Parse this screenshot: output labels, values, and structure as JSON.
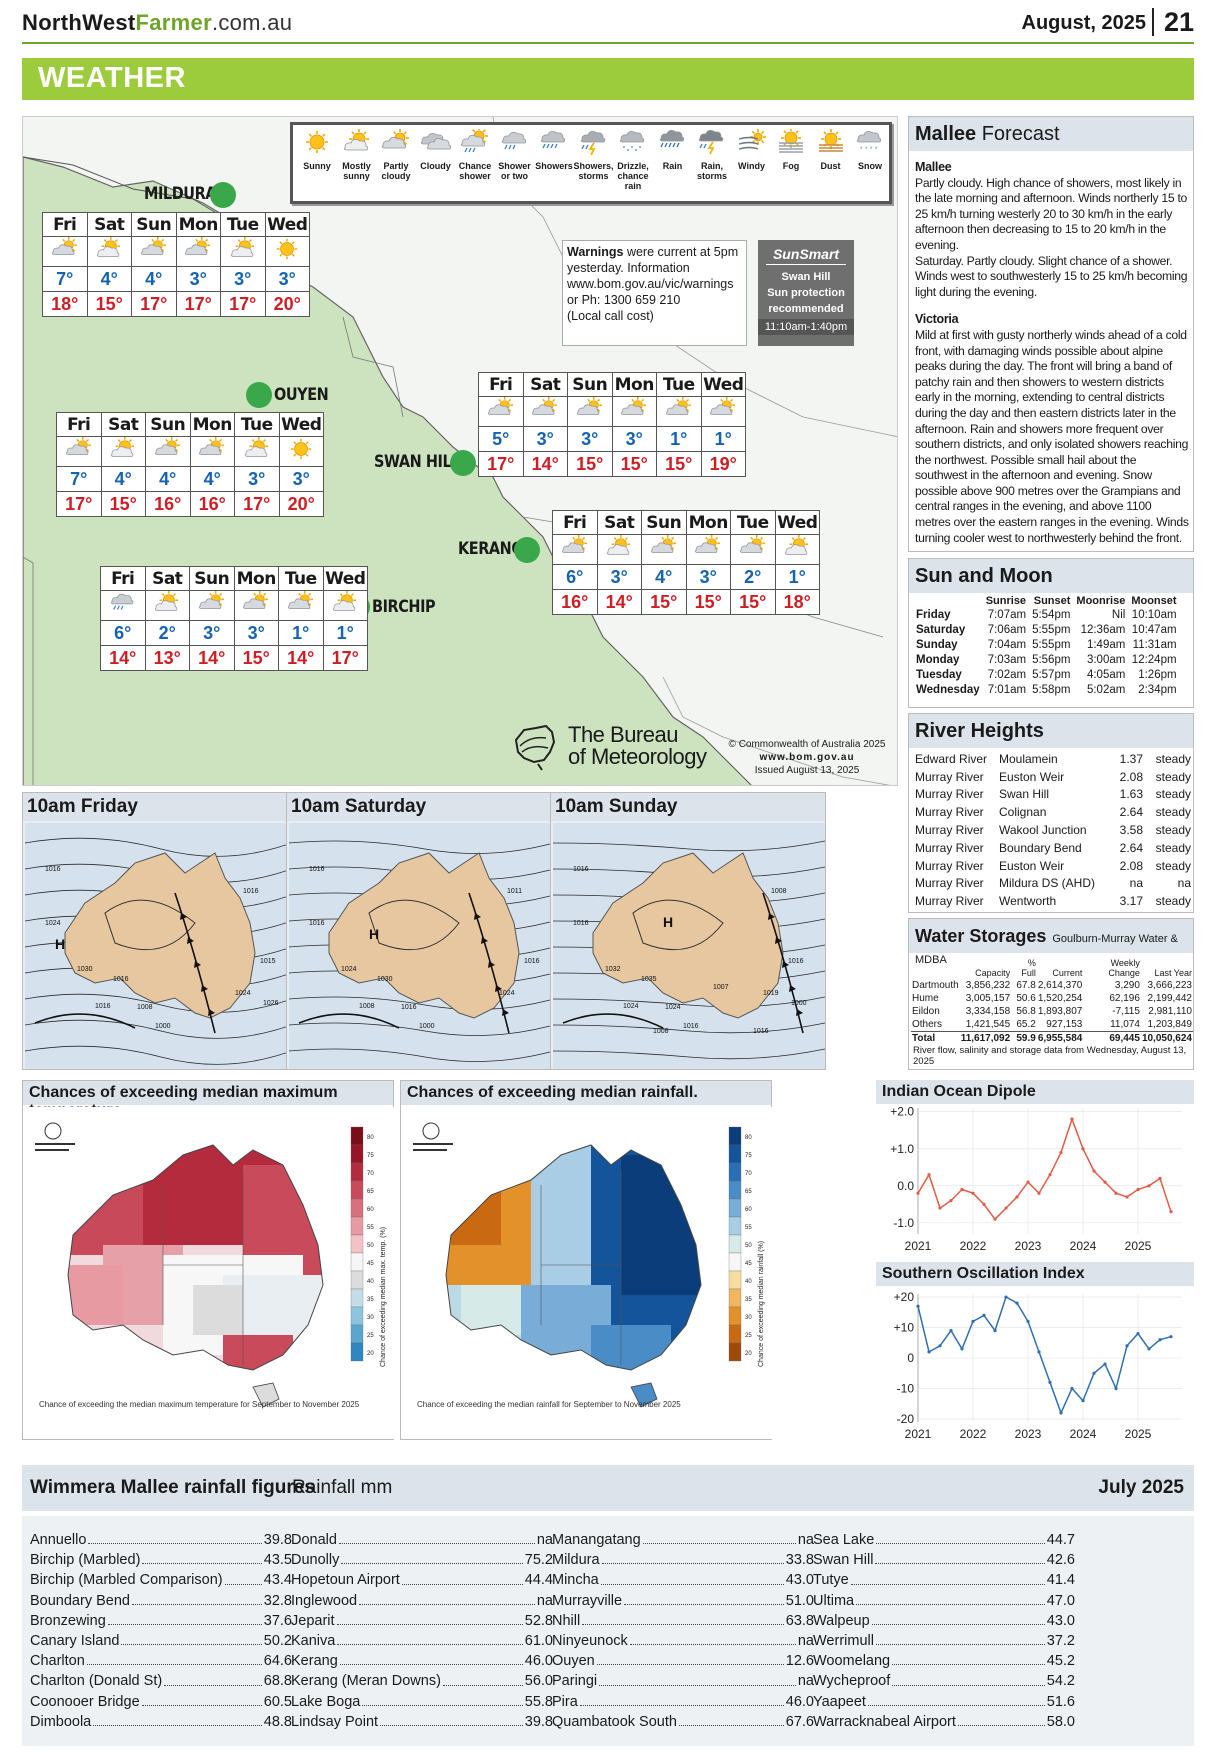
{
  "header": {
    "site_north_west": "NorthWest",
    "site_farmer": "Farmer",
    "site_domain": ".com.au",
    "issue": "August, 2025",
    "page": "21"
  },
  "section_title": "WEATHER",
  "legend": [
    {
      "label": "Sunny",
      "icon": "sunny-icon"
    },
    {
      "label": "Mostly sunny",
      "icon": "mostly-sunny-icon"
    },
    {
      "label": "Partly cloudy",
      "icon": "partly-cloudy-icon"
    },
    {
      "label": "Cloudy",
      "icon": "cloudy-icon"
    },
    {
      "label": "Chance shower",
      "icon": "chance-shower-icon"
    },
    {
      "label": "Shower or two",
      "icon": "shower-or-two-icon"
    },
    {
      "label": "Showers",
      "icon": "showers-icon"
    },
    {
      "label": "Showers, storms",
      "icon": "showers-storms-icon"
    },
    {
      "label": "Drizzle, chance rain",
      "icon": "drizzle-icon"
    },
    {
      "label": "Rain",
      "icon": "rain-icon"
    },
    {
      "label": "Rain, storms",
      "icon": "rain-storms-icon"
    },
    {
      "label": "Windy",
      "icon": "windy-icon"
    },
    {
      "label": "Fog",
      "icon": "fog-icon"
    },
    {
      "label": "Dust",
      "icon": "dust-icon"
    },
    {
      "label": "Snow",
      "icon": "snow-icon"
    }
  ],
  "days": [
    "Fri",
    "Sat",
    "Sun",
    "Mon",
    "Tue",
    "Wed"
  ],
  "towns": {
    "mildura": {
      "name": "MILDURA",
      "min": [
        "7°",
        "4°",
        "4°",
        "3°",
        "3°",
        "3°"
      ],
      "max": [
        "18°",
        "15°",
        "17°",
        "17°",
        "17°",
        "20°"
      ],
      "icons": [
        "partly-cloudy-icon",
        "mostly-sunny-icon",
        "partly-cloudy-icon",
        "partly-cloudy-icon",
        "mostly-sunny-icon",
        "sunny-icon"
      ]
    },
    "ouyen": {
      "name": "OUYEN",
      "min": [
        "7°",
        "4°",
        "4°",
        "4°",
        "3°",
        "3°"
      ],
      "max": [
        "17°",
        "15°",
        "16°",
        "16°",
        "17°",
        "20°"
      ],
      "icons": [
        "partly-cloudy-icon",
        "mostly-sunny-icon",
        "partly-cloudy-icon",
        "partly-cloudy-icon",
        "mostly-sunny-icon",
        "sunny-icon"
      ]
    },
    "swanhill": {
      "name": "SWAN HILL",
      "min": [
        "5°",
        "3°",
        "3°",
        "3°",
        "1°",
        "1°"
      ],
      "max": [
        "17°",
        "14°",
        "15°",
        "15°",
        "15°",
        "19°"
      ],
      "icons": [
        "partly-cloudy-icon",
        "partly-cloudy-icon",
        "partly-cloudy-icon",
        "partly-cloudy-icon",
        "partly-cloudy-icon",
        "partly-cloudy-icon"
      ]
    },
    "kerang": {
      "name": "KERANG",
      "min": [
        "6°",
        "3°",
        "4°",
        "3°",
        "2°",
        "1°"
      ],
      "max": [
        "16°",
        "14°",
        "15°",
        "15°",
        "15°",
        "18°"
      ],
      "icons": [
        "partly-cloudy-icon",
        "mostly-sunny-icon",
        "partly-cloudy-icon",
        "partly-cloudy-icon",
        "partly-cloudy-icon",
        "mostly-sunny-icon"
      ]
    },
    "birchip": {
      "name": "BIRCHIP",
      "min": [
        "6°",
        "2°",
        "3°",
        "3°",
        "1°",
        "1°"
      ],
      "max": [
        "14°",
        "13°",
        "14°",
        "15°",
        "14°",
        "17°"
      ],
      "icons": [
        "shower-or-two-icon",
        "mostly-sunny-icon",
        "partly-cloudy-icon",
        "partly-cloudy-icon",
        "partly-cloudy-icon",
        "mostly-sunny-icon"
      ]
    }
  },
  "warnings": {
    "bold": "Warnings",
    "text": " were current at 5pm yesterday. Information www.bom.gov.au/vic/warnings or Ph: 1300 659 210",
    "note": "(Local call cost)"
  },
  "sunsmart": {
    "logo": "SunSmart",
    "place": "Swan Hill",
    "line1": "Sun protection",
    "line2": "recommended",
    "time": "11:10am-1:40pm"
  },
  "bom": {
    "line1": "The Bureau",
    "line2": "of Meteorology",
    "copyright": "© Commonwealth of Australia 2025",
    "url": "www.bom.gov.au",
    "issued": "Issued August 13, 2025"
  },
  "mallee_forecast": {
    "title_bold": "Mallee",
    "title_rest": " Forecast",
    "sections": [
      {
        "heading": "Mallee",
        "text": "Partly cloudy. High chance of showers, most likely in the late morning and afternoon. Winds northerly 15 to 25 km/h turning westerly 20 to 30 km/h in the early afternoon then decreasing to 15 to 20 km/h in the evening.",
        "text2": "Saturday. Partly cloudy. Slight chance of a shower. Winds west to southwesterly 15 to 25 km/h becoming light during the evening."
      },
      {
        "heading": "Victoria",
        "text": "Mild at first with gusty northerly winds ahead of a cold front, with damaging winds possible about alpine peaks during the day. The front will bring a band of patchy rain and then showers to western districts early in the morning, extending to central districts during the day and then eastern districts later in the afternoon. Rain and showers more frequent over southern districts, and only isolated showers reaching the northwest. Possible small hail about the southwest in the afternoon and evening. Snow possible above 900 metres over the Grampians and central ranges in the evening, and above 1100 metres over the eastern ranges in the evening. Winds turning cooler west to northwesterly behind the front.",
        "text2": ""
      }
    ]
  },
  "sun_moon": {
    "title": "Sun and Moon",
    "headers": [
      "Sunrise",
      "Sunset",
      "Moonrise",
      "Moonset"
    ],
    "rows": [
      {
        "day": "Friday",
        "vals": [
          "7:07am",
          "5:54pm",
          "Nil",
          "10:10am"
        ]
      },
      {
        "day": "Saturday",
        "vals": [
          "7:06am",
          "5:55pm",
          "12:36am",
          "10:47am"
        ]
      },
      {
        "day": "Sunday",
        "vals": [
          "7:04am",
          "5:55pm",
          "1:49am",
          "11:31am"
        ]
      },
      {
        "day": "Monday",
        "vals": [
          "7:03am",
          "5:56pm",
          "3:00am",
          "12:24pm"
        ]
      },
      {
        "day": "Tuesday",
        "vals": [
          "7:02am",
          "5:57pm",
          "4:05am",
          "1:26pm"
        ]
      },
      {
        "day": "Wednesday",
        "vals": [
          "7:01am",
          "5:58pm",
          "5:02am",
          "2:34pm"
        ]
      }
    ]
  },
  "river_heights": {
    "title": "River Heights",
    "rows": [
      [
        "Edward River",
        "Moulamein",
        "1.37",
        "steady"
      ],
      [
        "Murray River",
        "Euston Weir",
        "2.08",
        "steady"
      ],
      [
        "Murray River",
        "Swan Hill",
        "1.63",
        "steady"
      ],
      [
        "Murray River",
        "Colignan",
        "2.64",
        "steady"
      ],
      [
        "Murray River",
        "Wakool Junction",
        "3.58",
        "steady"
      ],
      [
        "Murray River",
        "Boundary Bend",
        "2.64",
        "steady"
      ],
      [
        "Murray River",
        "Euston Weir",
        "2.08",
        "steady"
      ],
      [
        "Murray River",
        "Mildura DS (AHD)",
        "na",
        "na"
      ],
      [
        "Murray River",
        "Wentworth",
        "3.17",
        "steady"
      ]
    ]
  },
  "water_storages": {
    "title": "Water Storages",
    "source": "Goulburn-Murray Water & MDBA",
    "headers": [
      "",
      "Capacity",
      "% Full",
      "Current",
      "Weekly Change",
      "Last Year"
    ],
    "rows": [
      [
        "Dartmouth",
        "3,856,232",
        "67.8",
        "2,614,370",
        "3,290",
        "3,666,223"
      ],
      [
        "Hume",
        "3,005,157",
        "50.6",
        "1,520,254",
        "62,196",
        "2,199,442"
      ],
      [
        "Eildon",
        "3,334,158",
        "56.8",
        "1,893,807",
        "-7,115",
        "2,981,110"
      ],
      [
        "Others",
        "1,421,545",
        "65.2",
        "927,153",
        "11,074",
        "1,203,849"
      ]
    ],
    "total": [
      "Total",
      "11,617,092",
      "59.9",
      "6,955,584",
      "69,445",
      "10,050,624"
    ],
    "note": "River flow, salinity and storage data from Wednesday, August 13, 2025"
  },
  "synoptic": [
    {
      "title": "10am Friday",
      "labels": [
        "1016",
        "1024",
        "1030",
        "1016",
        "1024",
        "1008",
        "1016",
        "1000",
        "1016",
        "1015",
        "1026"
      ]
    },
    {
      "title": "10am Saturday",
      "labels": [
        "1016",
        "1016",
        "1024",
        "1030",
        "1024",
        "1016",
        "1008",
        "1000",
        "1011",
        "1016"
      ]
    },
    {
      "title": "10am Sunday",
      "labels": [
        "1016",
        "1016",
        "1032",
        "1035",
        "1019",
        "1024",
        "1024",
        "1016",
        "1008",
        "1016",
        "1000",
        "1007",
        "1008",
        "1016"
      ]
    }
  ],
  "outlooks": [
    {
      "title": "Chances of exceeding median maximum temperature.",
      "caption": "Chance of exceeding the median maximum temperature for September to November 2025",
      "scale_label": "Chance of exceeding median max. temp. (%)"
    },
    {
      "title": "Chances of exceeding median rainfall.",
      "caption": "Chance of exceeding the median rainfall for September to November 2025",
      "scale_label": "Chance of exceeding median rainfall (%)"
    }
  ],
  "scale_ticks": [
    "80",
    "75",
    "70",
    "65",
    "60",
    "55",
    "50",
    "45",
    "40",
    "35",
    "30",
    "25",
    "20"
  ],
  "iod": {
    "title": "Indian Ocean Dipole",
    "y_ticks": [
      "+2.0",
      "+1.0",
      "0.0",
      "-1.0"
    ],
    "x_ticks": [
      "2021",
      "2022",
      "2023",
      "2024",
      "2025"
    ],
    "chart_data": {
      "type": "line",
      "title": "Indian Ocean Dipole",
      "x": [
        2021.0,
        2021.2,
        2021.4,
        2021.6,
        2021.8,
        2022.0,
        2022.2,
        2022.4,
        2022.6,
        2022.8,
        2023.0,
        2023.2,
        2023.4,
        2023.6,
        2023.8,
        2024.0,
        2024.2,
        2024.4,
        2024.6,
        2024.8,
        2025.0,
        2025.2,
        2025.4,
        2025.6
      ],
      "values": [
        -0.2,
        0.3,
        -0.6,
        -0.4,
        -0.1,
        -0.2,
        -0.5,
        -0.9,
        -0.6,
        -0.3,
        0.1,
        -0.2,
        0.3,
        0.9,
        1.8,
        1.0,
        0.4,
        0.1,
        -0.2,
        -0.3,
        -0.1,
        0.0,
        0.2,
        -0.7
      ],
      "ylim": [
        -1.3,
        2.1
      ],
      "series_color": "#e15b45"
    }
  },
  "soi": {
    "title": "Southern Oscillation Index",
    "y_ticks": [
      "+20",
      "+10",
      "0",
      "-10",
      "-20"
    ],
    "x_ticks": [
      "2021",
      "2022",
      "2023",
      "2024",
      "2025"
    ],
    "chart_data": {
      "type": "line",
      "title": "Southern Oscillation Index",
      "x": [
        2021.0,
        2021.2,
        2021.4,
        2021.6,
        2021.8,
        2022.0,
        2022.2,
        2022.4,
        2022.6,
        2022.8,
        2023.0,
        2023.2,
        2023.4,
        2023.6,
        2023.8,
        2024.0,
        2024.2,
        2024.4,
        2024.6,
        2024.8,
        2025.0,
        2025.2,
        2025.4,
        2025.6
      ],
      "values": [
        17,
        2,
        4,
        9,
        3,
        12,
        14,
        9,
        20,
        18,
        12,
        2,
        -8,
        -18,
        -10,
        -14,
        -5,
        -2,
        -10,
        4,
        8,
        3,
        6,
        7
      ],
      "ylim": [
        -21,
        21
      ],
      "series_color": "#2f6fb0"
    }
  },
  "rainfall": {
    "title": "Wimmera Mallee rainfall figures",
    "unit": "Rainfall mm",
    "month": "July 2025",
    "columns": [
      [
        [
          "Annuello",
          "39.8"
        ],
        [
          "Birchip (Marbled)",
          "43.5"
        ],
        [
          "Birchip (Marbled Comparison)",
          "43.4"
        ],
        [
          "Boundary Bend",
          "32.8"
        ],
        [
          "Bronzewing",
          "37.6"
        ],
        [
          "Canary Island",
          "50.2"
        ],
        [
          "Charlton",
          "64.6"
        ],
        [
          "Charlton (Donald St)",
          "68.8"
        ],
        [
          "Coonooer Bridge",
          "60.5"
        ],
        [
          "Dimboola",
          "48.8"
        ]
      ],
      [
        [
          "Donald",
          "na"
        ],
        [
          "Dunolly",
          "75.2"
        ],
        [
          "Hopetoun Airport",
          "44.4"
        ],
        [
          "Inglewood",
          "na"
        ],
        [
          "Jeparit",
          "52.8"
        ],
        [
          "Kaniva",
          "61.0"
        ],
        [
          "Kerang",
          "46.0"
        ],
        [
          "Kerang (Meran Downs)",
          "56.0"
        ],
        [
          "Lake Boga",
          "55.8"
        ],
        [
          "Lindsay Point",
          "39.8"
        ]
      ],
      [
        [
          "Manangatang",
          "na"
        ],
        [
          "Mildura",
          "33.8"
        ],
        [
          "Mincha",
          "43.0"
        ],
        [
          "Murrayville",
          "51.0"
        ],
        [
          "Nhill",
          "63.8"
        ],
        [
          "Ninyeunock",
          "na"
        ],
        [
          "Ouyen",
          "12.6"
        ],
        [
          "Paringi",
          "na"
        ],
        [
          "Pira",
          "46.0"
        ],
        [
          "Quambatook South",
          "67.6"
        ]
      ],
      [
        [
          "Sea Lake",
          "44.7"
        ],
        [
          "Swan Hill",
          "42.6"
        ],
        [
          "Tutye",
          "41.4"
        ],
        [
          "Ultima",
          "47.0"
        ],
        [
          "Walpeup",
          "43.0"
        ],
        [
          "Werrimull",
          "37.2"
        ],
        [
          "Woomelang",
          "45.2"
        ],
        [
          "Wycheproof",
          "54.2"
        ],
        [
          "Yaapeet",
          "51.6"
        ],
        [
          "Warracknabeal Airport",
          "58.0"
        ]
      ]
    ]
  },
  "colors": {
    "accent": "#9ccc3c",
    "min_temp": "#1563b0",
    "max_temp": "#cc1f25",
    "town_dot": "#3aa84a",
    "panel_head": "#dde3ea"
  }
}
